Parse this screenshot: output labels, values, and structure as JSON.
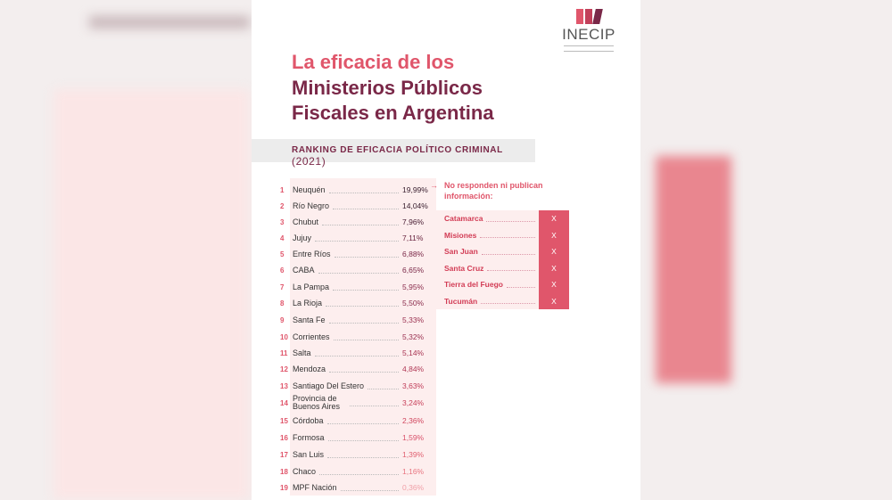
{
  "logo": {
    "name": "INECIP",
    "colors": [
      "#e0566b",
      "#c2405a",
      "#7a2848"
    ]
  },
  "title": {
    "line1": "La eficacia de los",
    "line2": "Ministerios Públicos",
    "line3": "Fiscales en Argentina"
  },
  "subtitle": {
    "label": "RANKING DE EFICACIA POLÍTICO CRIMINAL",
    "year": "(2021)"
  },
  "ranking": [
    {
      "n": "1",
      "name": "Neuquén",
      "value": "19,99%",
      "color": "#3a2030"
    },
    {
      "n": "2",
      "name": "Río Negro",
      "value": "14,04%",
      "color": "#3a2030"
    },
    {
      "n": "3",
      "name": "Chubut",
      "value": "7,96%",
      "color": "#4a2035"
    },
    {
      "n": "4",
      "name": "Jujuy",
      "value": "7,11%",
      "color": "#6a2540"
    },
    {
      "n": "5",
      "name": "Entre Ríos",
      "value": "6,88%",
      "color": "#7a2848"
    },
    {
      "n": "6",
      "name": "CABA",
      "value": "6,65%",
      "color": "#7a2848"
    },
    {
      "n": "7",
      "name": "La Pampa",
      "value": "5,95%",
      "color": "#8a2c4c"
    },
    {
      "n": "8",
      "name": "La Rioja",
      "value": "5,50%",
      "color": "#8a2c4c"
    },
    {
      "n": "9",
      "name": "Santa Fe",
      "value": "5,33%",
      "color": "#9a3050"
    },
    {
      "n": "10",
      "name": "Corrientes",
      "value": "5,32%",
      "color": "#9a3050"
    },
    {
      "n": "11",
      "name": "Salta",
      "value": "5,14%",
      "color": "#a83452"
    },
    {
      "n": "12",
      "name": "Mendoza",
      "value": "4,84%",
      "color": "#b03855"
    },
    {
      "n": "13",
      "name": "Santiago Del Estero",
      "value": "3,63%",
      "color": "#c03c58"
    },
    {
      "n": "14",
      "name": "Provincia de Buenos Aires",
      "value": "3,24%",
      "color": "#c8405a"
    },
    {
      "n": "15",
      "name": "Córdoba",
      "value": "2,36%",
      "color": "#d0465e"
    },
    {
      "n": "16",
      "name": "Formosa",
      "value": "1,59%",
      "color": "#d8506a"
    },
    {
      "n": "17",
      "name": "San Luis",
      "value": "1,39%",
      "color": "#e06070"
    },
    {
      "n": "18",
      "name": "Chaco",
      "value": "1,16%",
      "color": "#e87580"
    },
    {
      "n": "19",
      "name": "MPF Nación",
      "value": "0,36%",
      "color": "#f0a0a8"
    }
  ],
  "no_response": {
    "arrow": "→",
    "heading": "No responden ni publican información:",
    "mark": "X",
    "items": [
      "Catamarca",
      "Misiones",
      "San Juan",
      "Santa Cruz",
      "Tierra del Fuego",
      "Tucumán"
    ]
  }
}
